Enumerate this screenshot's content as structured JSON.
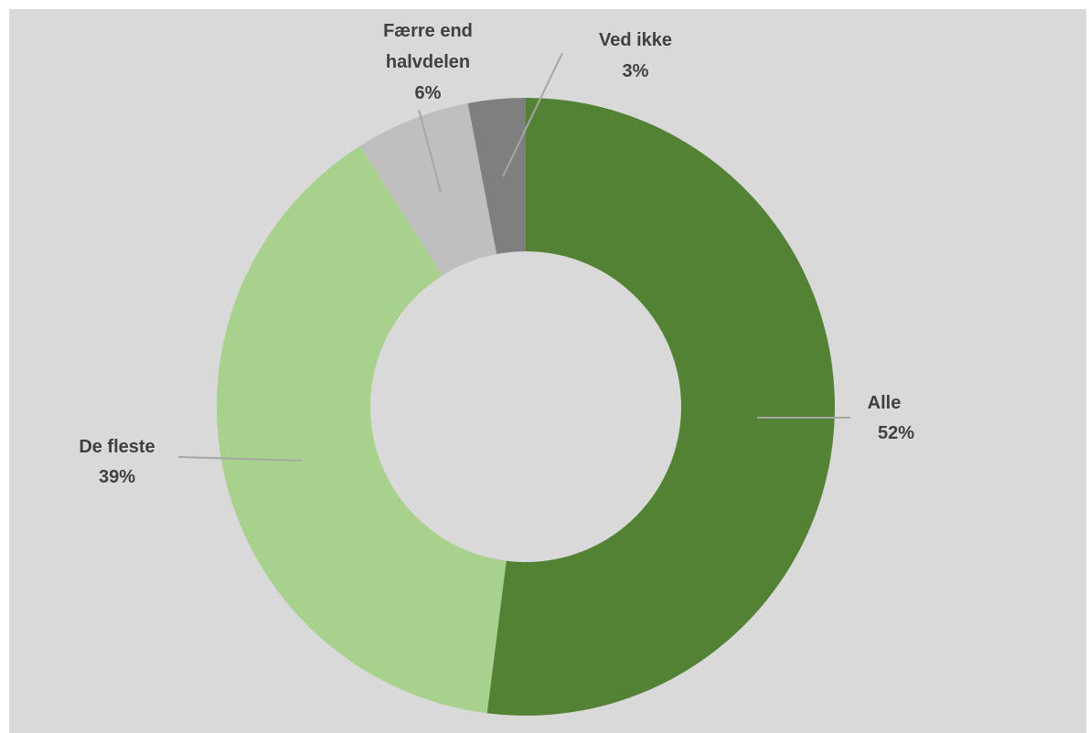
{
  "chart_data": {
    "type": "pie",
    "variant": "donut",
    "title": "",
    "background_color": "#d9d9d9",
    "start_angle_deg": 0,
    "direction": "clockwise",
    "legend": "none",
    "slices": [
      {
        "label": "Alle",
        "percent_label": "52%",
        "value": 52,
        "color": "#548235"
      },
      {
        "label": "De fleste",
        "percent_label": "39%",
        "value": 39,
        "color": "#a9d18e"
      },
      {
        "label": "Færre end halvdelen",
        "percent_label": "6%",
        "value": 6,
        "color": "#bfbfbf"
      },
      {
        "label": "Ved ikke",
        "percent_label": "3%",
        "value": 3,
        "color": "#7f7f7f"
      }
    ]
  }
}
